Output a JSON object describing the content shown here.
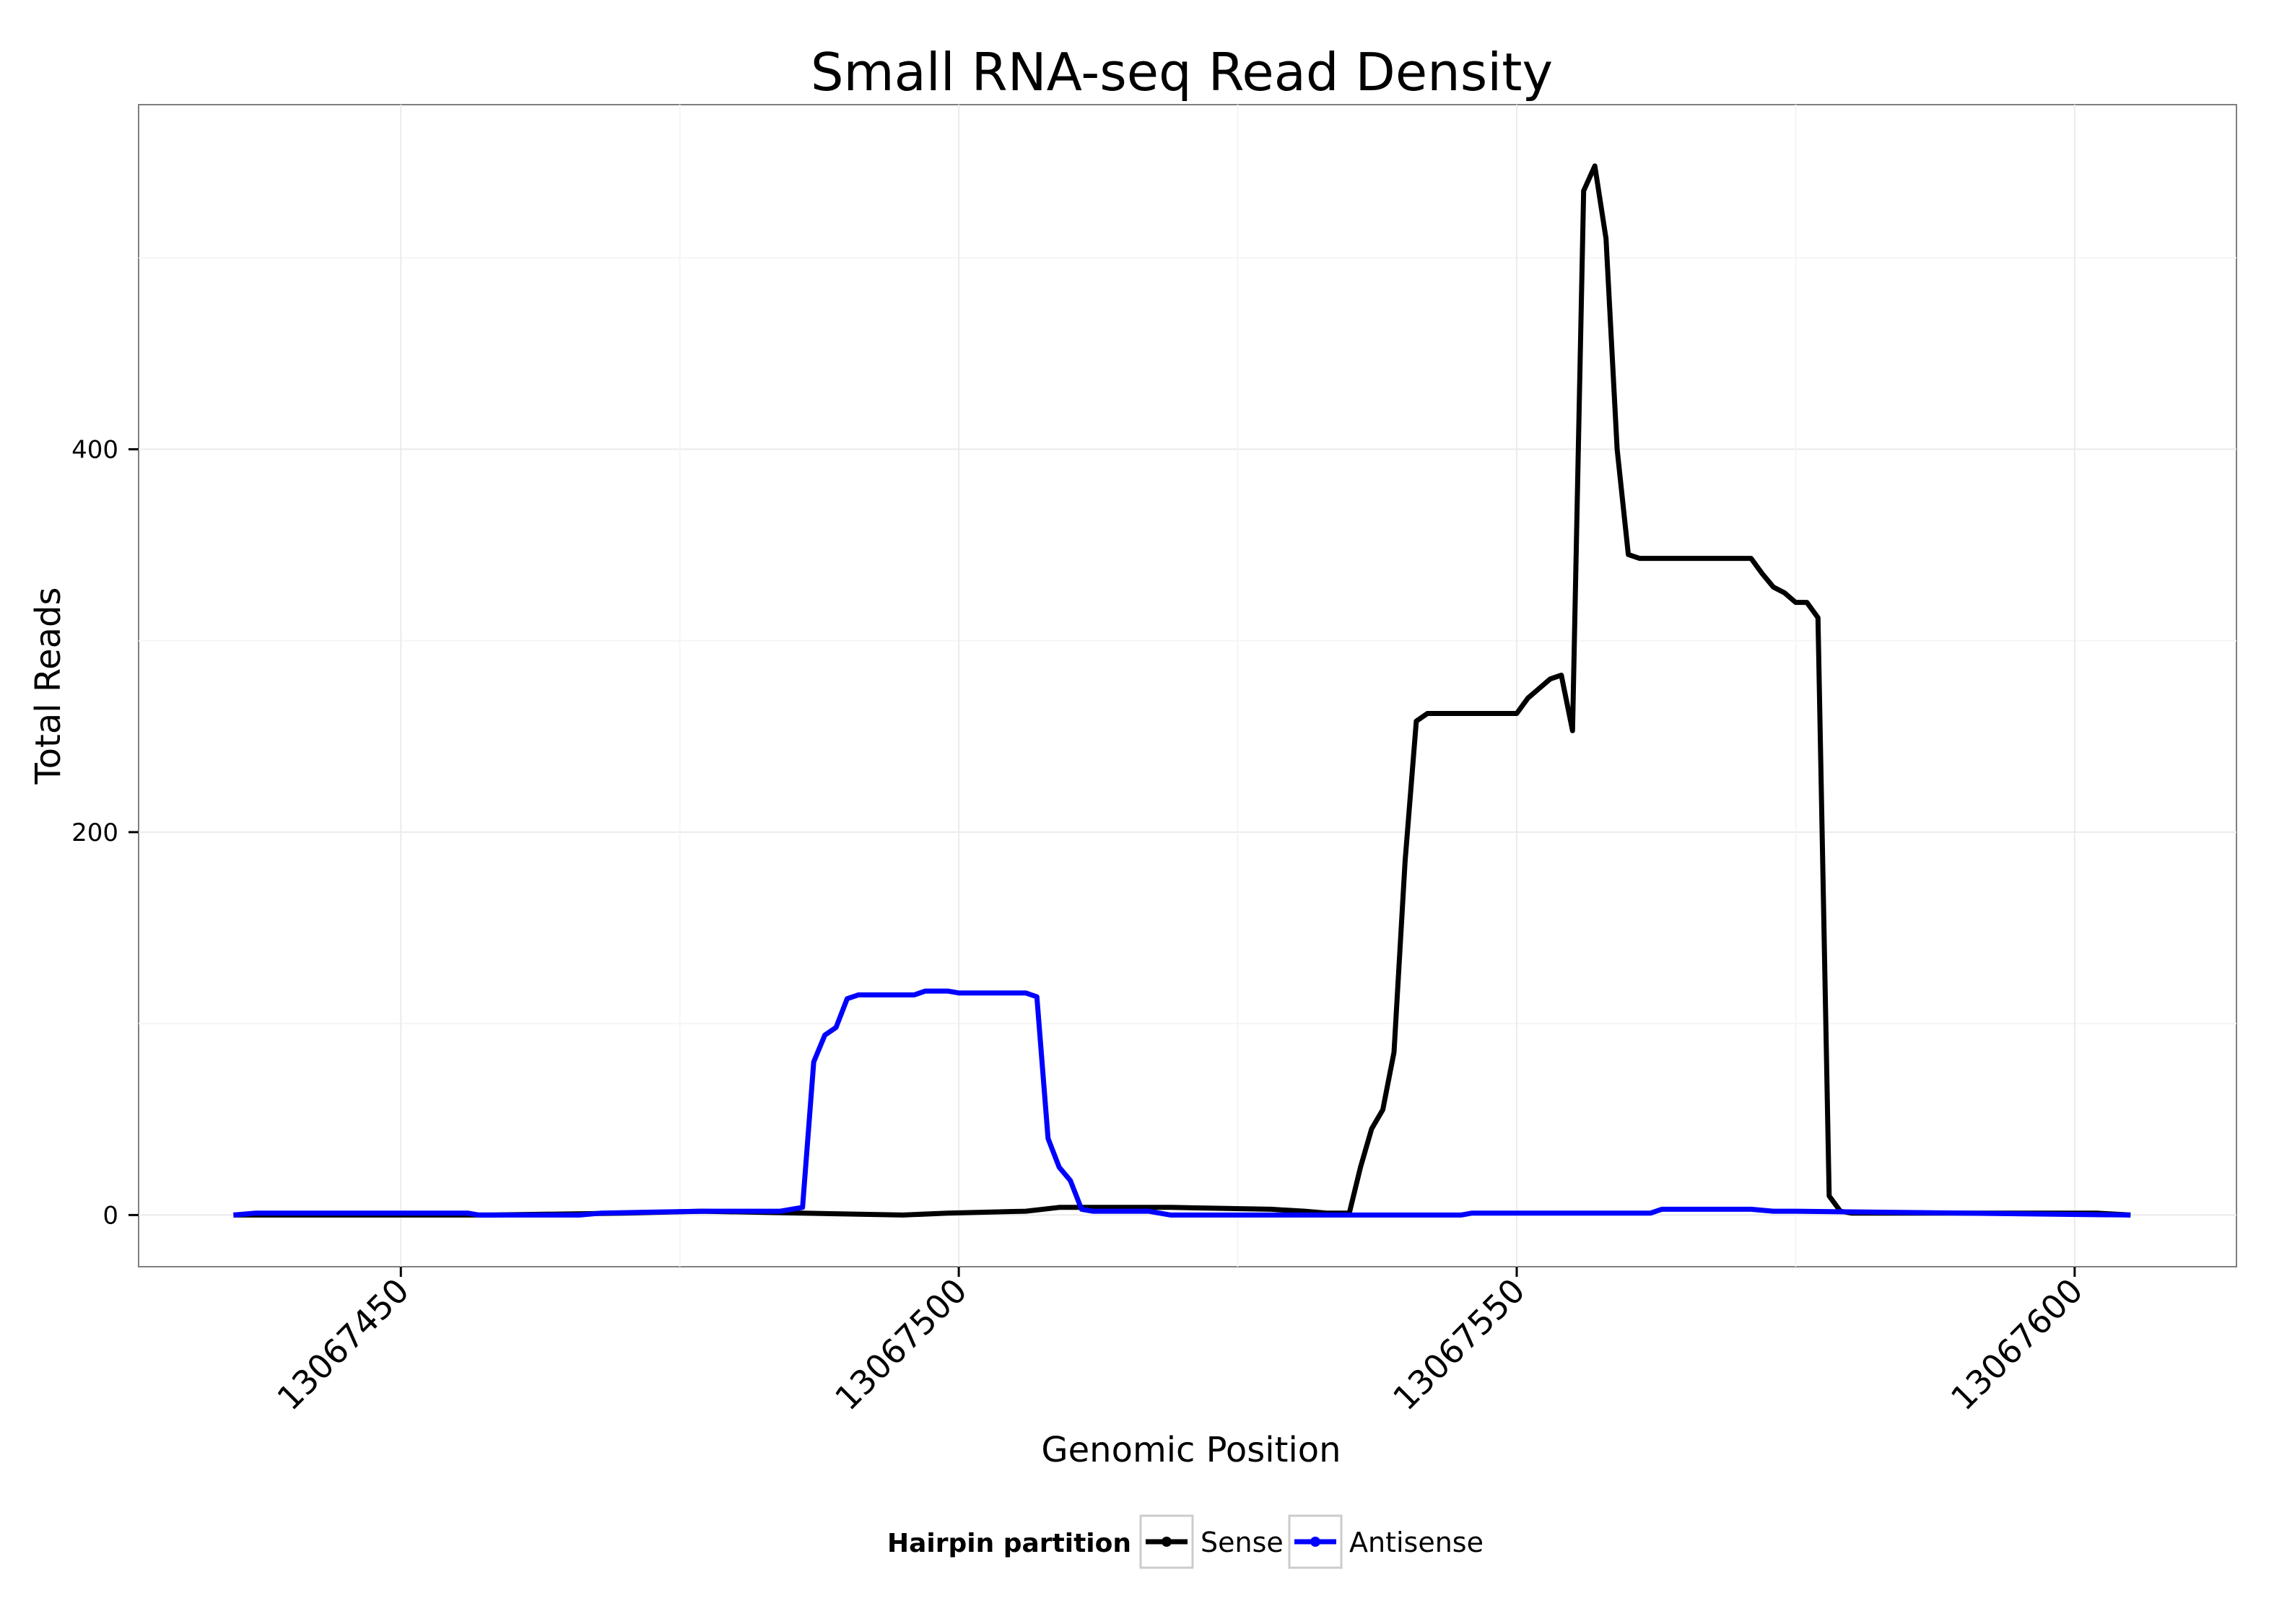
{
  "chart_data": {
    "type": "line",
    "title": "Small RNA-seq Read Density",
    "xlabel": "Genomic Position",
    "ylabel": "Total Reads",
    "xlim": [
      13067426.5,
      13067614.5
    ],
    "ylim": [
      -27,
      580
    ],
    "x_ticks": [
      13067450,
      13067500,
      13067550,
      13067600
    ],
    "x_tick_labels": [
      "13067450",
      "13067500",
      "13067550",
      "13067600"
    ],
    "y_ticks": [
      0,
      200,
      400
    ],
    "y_tick_labels": [
      "0",
      "200",
      "400"
    ],
    "grid": true,
    "legend": {
      "title": "Hairpin partition",
      "position": "bottom"
    },
    "series": [
      {
        "name": "Sense",
        "color": "#000000",
        "x": [
          13067435,
          13067458,
          13067470,
          13067477,
          13067495,
          13067499,
          13067506,
          13067509,
          13067516,
          13067519,
          13067528,
          13067531,
          13067533,
          13067535,
          13067536,
          13067537,
          13067538,
          13067539,
          13067540,
          13067541,
          13067542,
          13067550,
          13067551,
          13067552,
          13067553,
          13067554,
          13067555,
          13067556,
          13067557,
          13067558,
          13067559,
          13067560,
          13067561,
          13067571,
          13067572,
          13067573,
          13067574,
          13067575,
          13067576,
          13067577,
          13067578,
          13067579,
          13067580,
          13067581,
          13067582,
          13067602,
          13067605
        ],
        "y": [
          0,
          0,
          1,
          2,
          0,
          1,
          2,
          4,
          4,
          4,
          3,
          2,
          1,
          1,
          25,
          45,
          55,
          85,
          185,
          258,
          262,
          262,
          270,
          275,
          280,
          282,
          253,
          535,
          548,
          510,
          400,
          345,
          343,
          343,
          335,
          328,
          325,
          320,
          320,
          312,
          10,
          2,
          1,
          1,
          1,
          1,
          0
        ]
      },
      {
        "name": "Antisense",
        "color": "#0000ff",
        "x": [
          13067435,
          13067437,
          13067456,
          13067457,
          13067466,
          13067468,
          13067477,
          13067484,
          13067486,
          13067487,
          13067488,
          13067489,
          13067490,
          13067491,
          13067492,
          13067496,
          13067497,
          13067499,
          13067500,
          13067506,
          13067507,
          13067508,
          13067509,
          13067510,
          13067511,
          13067512,
          13067517,
          13067519,
          13067537,
          13067538,
          13067545,
          13067546,
          13067547,
          13067562,
          13067563,
          13067571,
          13067573,
          13067575,
          13067605
        ],
        "y": [
          0,
          1,
          1,
          0,
          0,
          1,
          2,
          2,
          4,
          80,
          94,
          98,
          113,
          115,
          115,
          115,
          117,
          117,
          116,
          116,
          114,
          40,
          25,
          18,
          3,
          2,
          2,
          0,
          0,
          0,
          0,
          1,
          1,
          1,
          3,
          3,
          2,
          2,
          0
        ]
      }
    ]
  }
}
